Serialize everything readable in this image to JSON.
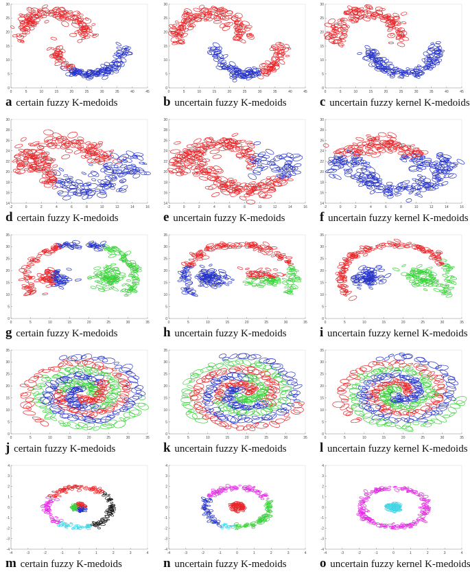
{
  "colors": {
    "red": "#e8262a",
    "blue": "#2633c8",
    "green": "#3ad23a",
    "magenta": "#e22ee2",
    "cyan": "#3fd6e6",
    "black": "#151515"
  },
  "chart_data": [
    {
      "id": "a",
      "letter": "a",
      "caption": "certain fuzzy K-medoids",
      "type": "scatter",
      "dataset": "moons",
      "xlim": [
        0,
        45
      ],
      "ylim": [
        0,
        30
      ],
      "xticks": [
        0,
        5,
        10,
        15,
        20,
        25,
        30,
        35,
        40,
        45
      ],
      "yticks": [
        0,
        5,
        10,
        15,
        20,
        25,
        30
      ],
      "assign": "moons-a",
      "clusters": [
        "red",
        "blue"
      ]
    },
    {
      "id": "b",
      "letter": "b",
      "caption": "uncertain fuzzy K-medoids",
      "type": "scatter",
      "dataset": "moons",
      "xlim": [
        0,
        45
      ],
      "ylim": [
        0,
        30
      ],
      "xticks": [
        0,
        5,
        10,
        15,
        20,
        25,
        30,
        35,
        40,
        45
      ],
      "yticks": [
        0,
        5,
        10,
        15,
        20,
        25,
        30
      ],
      "assign": "moons-b",
      "clusters": [
        "red",
        "blue"
      ]
    },
    {
      "id": "c",
      "letter": "c",
      "caption": "uncertain fuzzy kernel K-medoids",
      "type": "scatter",
      "dataset": "moons",
      "xlim": [
        0,
        45
      ],
      "ylim": [
        0,
        30
      ],
      "xticks": [
        0,
        5,
        10,
        15,
        20,
        25,
        30,
        35,
        40,
        45
      ],
      "yticks": [
        0,
        5,
        10,
        15,
        20,
        25,
        30
      ],
      "assign": "moons-c",
      "clusters": [
        "red",
        "blue"
      ]
    },
    {
      "id": "d",
      "letter": "d",
      "caption": "certain fuzzy K-medoids",
      "type": "scatter",
      "dataset": "moons2",
      "xlim": [
        -2,
        16
      ],
      "ylim": [
        14,
        30
      ],
      "xticks": [
        -2,
        0,
        2,
        4,
        6,
        8,
        10,
        12,
        14,
        16
      ],
      "yticks": [
        14,
        16,
        18,
        20,
        22,
        24,
        26,
        28,
        30
      ],
      "assign": "moons2-d",
      "clusters": [
        "red",
        "blue"
      ]
    },
    {
      "id": "e",
      "letter": "e",
      "caption": "uncertain fuzzy K-medoids",
      "type": "scatter",
      "dataset": "moons2",
      "xlim": [
        -2,
        16
      ],
      "ylim": [
        14,
        30
      ],
      "xticks": [
        -2,
        0,
        2,
        4,
        6,
        8,
        10,
        12,
        14,
        16
      ],
      "yticks": [
        14,
        16,
        18,
        20,
        22,
        24,
        26,
        28,
        30
      ],
      "assign": "moons2-e",
      "clusters": [
        "red",
        "blue"
      ]
    },
    {
      "id": "f",
      "letter": "f",
      "caption": "uncertain fuzzy kernel K-medoids",
      "type": "scatter",
      "dataset": "moons2",
      "xlim": [
        -2,
        16
      ],
      "ylim": [
        14,
        30
      ],
      "xticks": [
        -2,
        0,
        2,
        4,
        6,
        8,
        10,
        12,
        14,
        16
      ],
      "yticks": [
        14,
        16,
        18,
        20,
        22,
        24,
        26,
        28,
        30
      ],
      "assign": "moons2-f",
      "clusters": [
        "red",
        "blue"
      ]
    },
    {
      "id": "g",
      "letter": "g",
      "caption": "certain fuzzy K-medoids",
      "type": "scatter",
      "dataset": "ring3",
      "xlim": [
        0,
        35
      ],
      "ylim": [
        0,
        35
      ],
      "xticks": [
        0,
        5,
        10,
        15,
        20,
        25,
        30,
        35
      ],
      "yticks": [
        0,
        5,
        10,
        15,
        20,
        25,
        30,
        35
      ],
      "assign": "ring3-g",
      "clusters": [
        "red",
        "blue",
        "green"
      ]
    },
    {
      "id": "h",
      "letter": "h",
      "caption": "uncertain fuzzy K-medoids",
      "type": "scatter",
      "dataset": "ring3",
      "xlim": [
        0,
        35
      ],
      "ylim": [
        0,
        35
      ],
      "xticks": [
        0,
        5,
        10,
        15,
        20,
        25,
        30,
        35
      ],
      "yticks": [
        0,
        5,
        10,
        15,
        20,
        25,
        30,
        35
      ],
      "assign": "ring3-h",
      "clusters": [
        "red",
        "blue",
        "green"
      ]
    },
    {
      "id": "i",
      "letter": "i",
      "caption": "uncertain fuzzy kernel K-medoids",
      "type": "scatter",
      "dataset": "ring3",
      "xlim": [
        0,
        35
      ],
      "ylim": [
        0,
        35
      ],
      "xticks": [
        0,
        5,
        10,
        15,
        20,
        25,
        30,
        35
      ],
      "yticks": [
        0,
        5,
        10,
        15,
        20,
        25,
        30,
        35
      ],
      "assign": "ring3-i",
      "clusters": [
        "red",
        "blue",
        "green"
      ]
    },
    {
      "id": "j",
      "letter": "j",
      "caption": "certain fuzzy K-medoids",
      "type": "scatter",
      "dataset": "spiral",
      "xlim": [
        0,
        35
      ],
      "ylim": [
        0,
        35
      ],
      "xticks": [
        0,
        5,
        10,
        15,
        20,
        25,
        30,
        35
      ],
      "yticks": [
        0,
        5,
        10,
        15,
        20,
        25,
        30,
        35
      ],
      "assign": "spiral-j",
      "clusters": [
        "red",
        "green",
        "blue"
      ]
    },
    {
      "id": "k",
      "letter": "k",
      "caption": "uncertain fuzzy K-medoids",
      "type": "scatter",
      "dataset": "spiral",
      "xlim": [
        0,
        35
      ],
      "ylim": [
        0,
        35
      ],
      "xticks": [
        0,
        5,
        10,
        15,
        20,
        25,
        30,
        35
      ],
      "yticks": [
        0,
        5,
        10,
        15,
        20,
        25,
        30,
        35
      ],
      "assign": "spiral-k",
      "clusters": [
        "red",
        "green",
        "blue"
      ]
    },
    {
      "id": "l",
      "letter": "l",
      "caption": "uncertain fuzzy kernel K-medoids",
      "type": "scatter",
      "dataset": "spiral",
      "xlim": [
        0,
        35
      ],
      "ylim": [
        0,
        35
      ],
      "xticks": [
        0,
        5,
        10,
        15,
        20,
        25,
        30,
        35
      ],
      "yticks": [
        0,
        5,
        10,
        15,
        20,
        25,
        30,
        35
      ],
      "assign": "spiral-l",
      "clusters": [
        "red",
        "green",
        "blue"
      ]
    },
    {
      "id": "m",
      "letter": "m",
      "caption": "certain fuzzy K-medoids",
      "type": "scatter",
      "dataset": "circles",
      "xlim": [
        -4,
        4
      ],
      "ylim": [
        -4,
        4
      ],
      "xticks": [
        -4,
        -3,
        -2,
        -1,
        0,
        1,
        2,
        3,
        4
      ],
      "yticks": [
        -4,
        -3,
        -2,
        -1,
        0,
        1,
        2,
        3,
        4
      ],
      "assign": "circles-m",
      "clusters": [
        "red",
        "black",
        "cyan",
        "magenta",
        "green",
        "blue"
      ]
    },
    {
      "id": "n",
      "letter": "n",
      "caption": "uncertain fuzzy K-medoids",
      "type": "scatter",
      "dataset": "circles",
      "xlim": [
        -4,
        4
      ],
      "ylim": [
        -4,
        4
      ],
      "xticks": [
        -4,
        -3,
        -2,
        -1,
        0,
        1,
        2,
        3,
        4
      ],
      "yticks": [
        -4,
        -3,
        -2,
        -1,
        0,
        1,
        2,
        3,
        4
      ],
      "assign": "circles-n",
      "clusters": [
        "magenta",
        "green",
        "blue",
        "cyan",
        "black",
        "red"
      ]
    },
    {
      "id": "o",
      "letter": "o",
      "caption": "uncertain fuzzy kernel K-medoids",
      "type": "scatter",
      "dataset": "circles",
      "xlim": [
        -4,
        4
      ],
      "ylim": [
        -4,
        4
      ],
      "xticks": [
        -4,
        -3,
        -2,
        -1,
        0,
        1,
        2,
        3,
        4
      ],
      "yticks": [
        -4,
        -3,
        -2,
        -1,
        0,
        1,
        2,
        3,
        4
      ],
      "assign": "circles-o",
      "clusters": [
        "magenta",
        "cyan"
      ]
    }
  ]
}
